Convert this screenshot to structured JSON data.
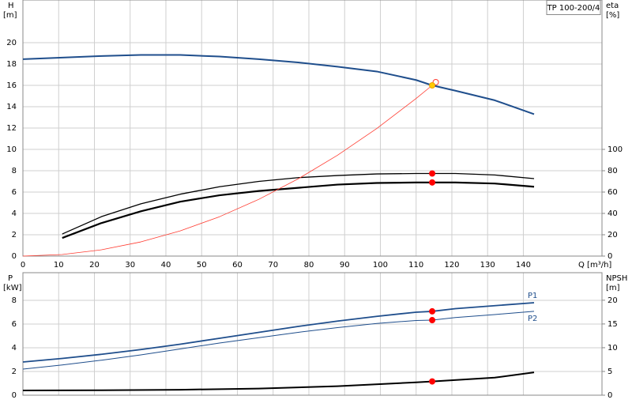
{
  "chart_data": [
    {
      "type": "line",
      "annotation": "TP 100-200/4",
      "ylabel": "H",
      "yunit": "[m]",
      "y2label": "eta",
      "y2unit": "[%]",
      "xlabel": "Q [m³/h]",
      "xlim": [
        0,
        162
      ],
      "xticks": [
        0,
        10,
        20,
        30,
        40,
        50,
        60,
        70,
        80,
        90,
        100,
        110,
        120,
        130,
        140
      ],
      "ylim": [
        0,
        24
      ],
      "yticks": [
        0,
        2,
        4,
        6,
        8,
        10,
        12,
        14,
        16,
        18,
        20
      ],
      "y2lim": [
        0,
        240
      ],
      "y2ticks": [
        0,
        20,
        40,
        60,
        80,
        100
      ],
      "grid": true,
      "series": [
        {
          "color": "#1f4e8c",
          "width": 2,
          "axis": "y",
          "x": [
            0,
            11,
            22,
            33,
            44,
            55,
            66,
            77,
            88,
            99,
            110,
            114.5,
            121,
            132,
            143
          ],
          "values": [
            18.45,
            18.6,
            18.75,
            18.85,
            18.85,
            18.7,
            18.45,
            18.15,
            17.75,
            17.3,
            16.5,
            16.0,
            15.5,
            14.6,
            13.3
          ]
        },
        {
          "color": "#000000",
          "width": 1.3,
          "axis": "y2",
          "x": [
            11,
            22,
            33,
            44,
            55,
            66,
            77,
            88,
            99,
            110,
            114.5,
            121,
            132,
            143
          ],
          "values": [
            20.7,
            37,
            49,
            58,
            65,
            70,
            73.5,
            75.5,
            77,
            77.4,
            77.4,
            77.4,
            76,
            72.6
          ]
        },
        {
          "color": "#000000",
          "width": 2.2,
          "axis": "y2",
          "x": [
            11,
            22,
            33,
            44,
            55,
            66,
            77,
            88,
            99,
            110,
            114.5,
            121,
            132,
            143
          ],
          "values": [
            17,
            31,
            42,
            51,
            57,
            61,
            64,
            67,
            68.5,
            69,
            69,
            69,
            68,
            65
          ]
        },
        {
          "color": "#ff3b30",
          "width": 0.8,
          "axis": "y",
          "x": [
            0,
            11,
            22,
            33,
            44,
            55,
            66,
            77,
            88,
            99,
            110,
            114.5
          ],
          "values": [
            0,
            0.15,
            0.59,
            1.33,
            2.36,
            3.69,
            5.32,
            7.24,
            9.45,
            11.96,
            14.77,
            16.0
          ]
        },
        {
          "markers": true,
          "color": "#ff3b30",
          "fill": "none",
          "axis": "y",
          "x": [
            115.5
          ],
          "values": [
            16.3
          ]
        },
        {
          "markers": true,
          "color": "#f0a000",
          "fill": "#ffcc00",
          "axis": "y",
          "x": [
            114.5
          ],
          "values": [
            16.0
          ]
        },
        {
          "markers": true,
          "color": "#ff0000",
          "fill": "#ff0000",
          "axis": "y2",
          "x": [
            114.5,
            114.5
          ],
          "values": [
            77.4,
            69
          ]
        }
      ]
    },
    {
      "type": "line",
      "ylabel": "P",
      "yunit": "[kW]",
      "y2label": "NPSH",
      "y2unit": "[m]",
      "ylim": [
        0,
        10.33
      ],
      "yticks": [
        0,
        2,
        4,
        6,
        8
      ],
      "y2lim": [
        0,
        25.8
      ],
      "y2ticks": [
        0,
        5,
        10,
        15,
        20
      ],
      "grid": true,
      "series": [
        {
          "name": "P1",
          "name_side": "above",
          "color": "#1f4e8c",
          "width": 1.8,
          "axis": "y",
          "x": [
            0,
            11,
            22,
            33,
            44,
            55,
            66,
            77,
            88,
            99,
            110,
            114.5,
            121,
            132,
            143
          ],
          "values": [
            2.8,
            3.1,
            3.45,
            3.85,
            4.3,
            4.8,
            5.3,
            5.8,
            6.25,
            6.65,
            7.0,
            7.07,
            7.3,
            7.55,
            7.8
          ]
        },
        {
          "name": "P2",
          "name_side": "below",
          "color": "#1f4e8c",
          "width": 1,
          "axis": "y",
          "x": [
            0,
            11,
            22,
            33,
            44,
            55,
            66,
            77,
            88,
            99,
            110,
            114.5,
            121,
            132,
            143
          ],
          "values": [
            2.2,
            2.55,
            2.95,
            3.4,
            3.9,
            4.4,
            4.85,
            5.3,
            5.7,
            6.05,
            6.3,
            6.33,
            6.55,
            6.8,
            7.07
          ]
        },
        {
          "color": "#000000",
          "width": 2,
          "axis": "y2",
          "x": [
            0,
            22,
            44,
            66,
            88,
            110,
            114.5,
            132,
            143
          ],
          "values": [
            1.0,
            1.05,
            1.15,
            1.4,
            1.9,
            2.7,
            2.9,
            3.7,
            4.8
          ]
        },
        {
          "markers": true,
          "color": "#ff0000",
          "fill": "#ff0000",
          "axis": "y",
          "x": [
            114.5,
            114.5
          ],
          "values": [
            7.07,
            6.33
          ]
        },
        {
          "markers": true,
          "color": "#ff0000",
          "fill": "#ff0000",
          "axis": "y2",
          "x": [
            114.5
          ],
          "values": [
            2.9
          ]
        }
      ]
    }
  ]
}
